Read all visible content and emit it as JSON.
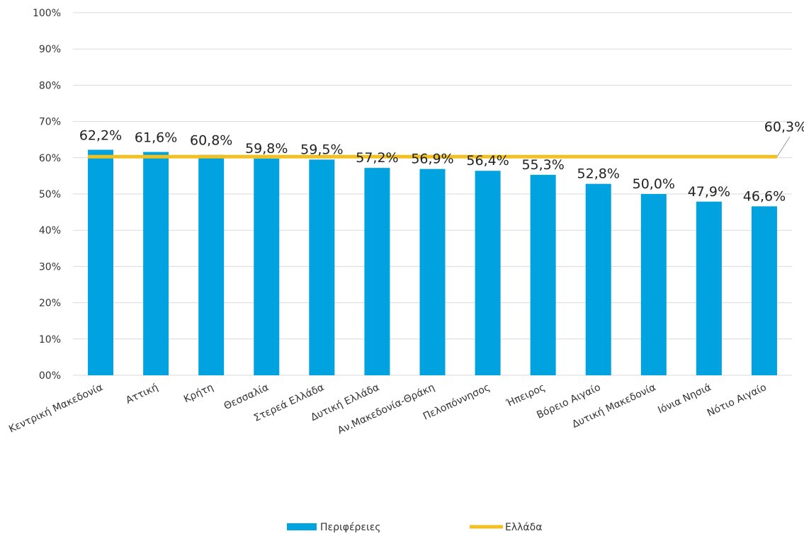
{
  "chart_data": {
    "type": "bar",
    "categories": [
      "Κεντρική Μακεδονία",
      "Αττική",
      "Κρήτη",
      "Θεσσαλία",
      "Στερεά Ελλάδα",
      "Δυτική Ελλάδα",
      "Αν.Μακεδονία-Θράκη",
      "Πελοπόννησος",
      "Ήπειρος",
      "Βόρειο Αιγαίο",
      "Δυτική Μακεδονία",
      "Ιόνια Νησιά",
      "Νότιο Αιγαίο"
    ],
    "series": [
      {
        "name": "Περιφέρειες",
        "type": "bar",
        "color": "#00A3E0",
        "values": [
          62.2,
          61.6,
          60.8,
          59.8,
          59.5,
          57.2,
          56.9,
          56.4,
          55.3,
          52.8,
          50.0,
          47.9,
          46.6
        ],
        "labels": [
          "62,2%",
          "61,6%",
          "60,8%",
          "59,8%",
          "59,5%",
          "57,2%",
          "56,9%",
          "56,4%",
          "55,3%",
          "52,8%",
          "50,0%",
          "47,9%",
          "46,6%"
        ]
      },
      {
        "name": "Ελλάδα",
        "type": "line",
        "color": "#F2C020",
        "value": 60.3,
        "label": "60,3%"
      }
    ],
    "ylim": [
      0,
      100
    ],
    "yticks": [
      "00%",
      "10%",
      "20%",
      "30%",
      "40%",
      "50%",
      "60%",
      "70%",
      "80%",
      "90%",
      "100%"
    ],
    "ytick_values": [
      0,
      10,
      20,
      30,
      40,
      50,
      60,
      70,
      80,
      90,
      100
    ],
    "grid": true,
    "legend": "bottom-center"
  }
}
